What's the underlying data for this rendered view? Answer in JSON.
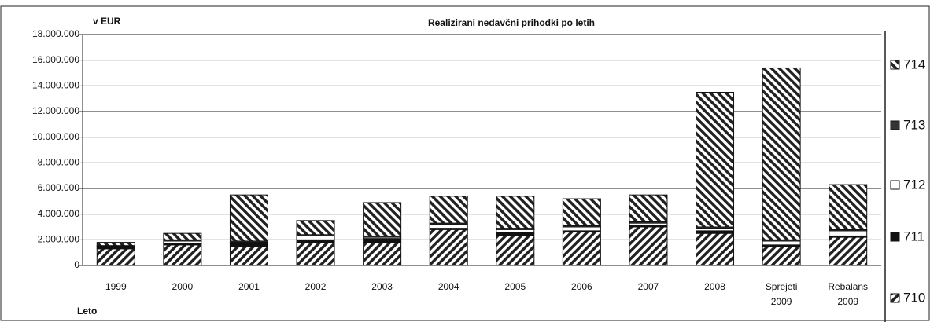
{
  "chart_data": {
    "type": "stacked_bar",
    "title": "Realizirani nedavčni prihodki po letih",
    "y_label": "v EUR",
    "x_label": "Leto",
    "categories": [
      "1999",
      "2000",
      "2001",
      "2002",
      "2003",
      "2004",
      "2005",
      "2006",
      "2007",
      "2008",
      "Sprejeti 2009",
      "Rebalans 2009"
    ],
    "series": [
      {
        "name": "710",
        "color": "#222",
        "hatch": "forward",
        "values": [
          1300000,
          1600000,
          1500000,
          1800000,
          1800000,
          2800000,
          2300000,
          2600000,
          3000000,
          2500000,
          1500000,
          2200000
        ]
      },
      {
        "name": "711",
        "color": "#111",
        "hatch": "none",
        "values": [
          100000,
          100000,
          200000,
          200000,
          300000,
          100000,
          300000,
          100000,
          100000,
          200000,
          100000,
          100000
        ]
      },
      {
        "name": "712",
        "color": "#fff",
        "hatch": "none",
        "values": [
          100000,
          200000,
          100000,
          300000,
          100000,
          300000,
          200000,
          300000,
          200000,
          200000,
          300000,
          400000
        ]
      },
      {
        "name": "713",
        "color": "#333",
        "hatch": "none",
        "values": [
          50000,
          100000,
          100000,
          100000,
          100000,
          100000,
          100000,
          100000,
          100000,
          100000,
          100000,
          100000
        ]
      },
      {
        "name": "714",
        "color": "#222",
        "hatch": "back",
        "values": [
          250000,
          500000,
          3600000,
          1100000,
          2600000,
          2100000,
          2500000,
          2100000,
          2100000,
          10500000,
          13400000,
          3500000
        ]
      }
    ],
    "ylim": [
      0,
      18000000
    ],
    "yticks": [
      {
        "value": 0,
        "label": "0"
      },
      {
        "value": 2000000,
        "label": "2.000.000"
      },
      {
        "value": 4000000,
        "label": "4.000.000"
      },
      {
        "value": 6000000,
        "label": "6.000.000"
      },
      {
        "value": 8000000,
        "label": "8.000.000"
      },
      {
        "value": 10000000,
        "label": "10.000.000"
      },
      {
        "value": 12000000,
        "label": "12.000.000"
      },
      {
        "value": 14000000,
        "label": "14.000.000"
      },
      {
        "value": 16000000,
        "label": "16.000.000"
      },
      {
        "value": 18000000,
        "label": "18.000.000"
      }
    ],
    "grid": true,
    "legend": "right"
  }
}
